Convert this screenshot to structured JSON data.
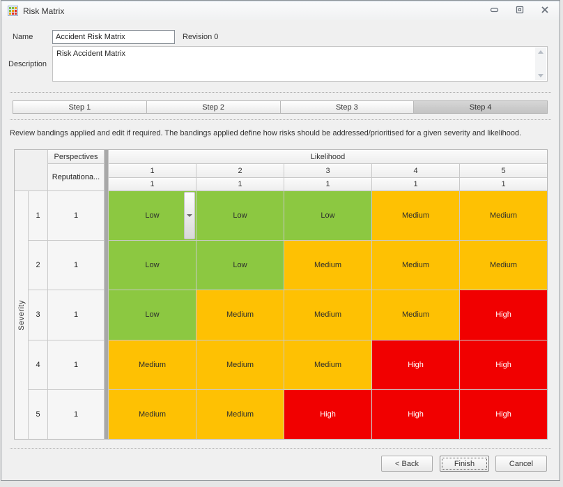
{
  "window": {
    "title": "Risk Matrix",
    "icon_cells": [
      "#7fc243",
      "#7fc243",
      "#f2a007",
      "#7fc243",
      "#f2a007",
      "#e23227",
      "#f2a007",
      "#e23227",
      "#e23227"
    ]
  },
  "form": {
    "name_label": "Name",
    "name_value": "Accident Risk Matrix",
    "revision_label": "Revision 0",
    "description_label": "Description",
    "description_value": "Risk Accident Matrix"
  },
  "steps": [
    {
      "label": "Step 1",
      "active": false
    },
    {
      "label": "Step 2",
      "active": false
    },
    {
      "label": "Step 3",
      "active": false
    },
    {
      "label": "Step 4",
      "active": true
    }
  ],
  "instruction": "Review bandings applied and edit if required. The bandings applied define how risks should be addressed/prioritised for a given severity and likelihood.",
  "matrix": {
    "perspectives_header": "Perspectives",
    "perspective_name": "Reputationa...",
    "likelihood_header": "Likelihood",
    "likelihood_values": [
      "1",
      "2",
      "3",
      "4",
      "5"
    ],
    "likelihood_weights": [
      "1",
      "1",
      "1",
      "1",
      "1"
    ],
    "severity_header": "Severity",
    "severity_values": [
      "1",
      "2",
      "3",
      "4",
      "5"
    ],
    "perspective_weights": [
      "1",
      "1",
      "1",
      "1",
      "1"
    ],
    "bandings": [
      [
        "Low",
        "Low",
        "Low",
        "Medium",
        "Medium"
      ],
      [
        "Low",
        "Low",
        "Medium",
        "Medium",
        "Medium"
      ],
      [
        "Low",
        "Medium",
        "Medium",
        "Medium",
        "High"
      ],
      [
        "Medium",
        "Medium",
        "Medium",
        "High",
        "High"
      ],
      [
        "Medium",
        "Medium",
        "High",
        "High",
        "High"
      ]
    ],
    "band_colors": {
      "Low": "#8cc841",
      "Medium": "#fec103",
      "High": "#f10000"
    },
    "band_text_colors": {
      "Low": "#2d2d2d",
      "Medium": "#2d2d2d",
      "High": "#ffffff"
    }
  },
  "footer": {
    "back_label": "< Back",
    "finish_label": "Finish",
    "cancel_label": "Cancel"
  }
}
